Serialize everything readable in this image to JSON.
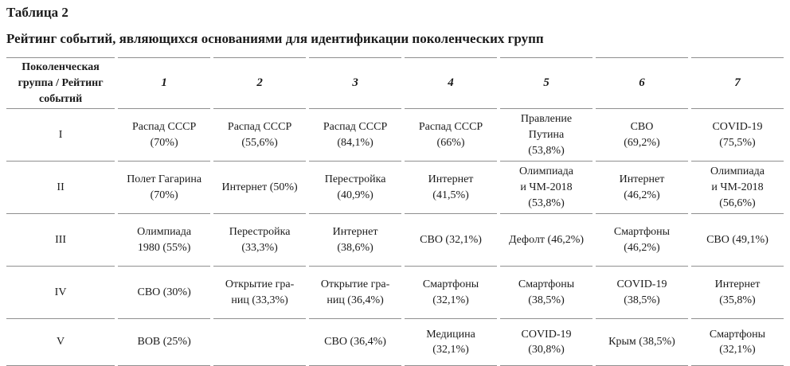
{
  "page": {
    "label": "Таблица 2",
    "title": "Рейтинг событий, являющихся основаниями для идентификации поколенческих групп",
    "background_color": "#ffffff",
    "text_color": "#1b1b1b",
    "rule_color": "#8f8f8f"
  },
  "table": {
    "header": {
      "group_col": "Поколенческая\nгруппа / Рейтинг\nсобытий",
      "rank_cols": [
        "1",
        "2",
        "3",
        "4",
        "5",
        "6",
        "7"
      ]
    },
    "rows": [
      {
        "rank": "I",
        "cells": [
          "Распад СССР\n(70%)",
          "Распад СССР\n(55,6%)",
          "Распад СССР\n(84,1%)",
          "Распад СССР\n(66%)",
          "Правление\nПутина\n(53,8%)",
          "СВО\n(69,2%)",
          "COVID-19\n(75,5%)"
        ]
      },
      {
        "rank": "II",
        "cells": [
          "Полет Гагарина\n(70%)",
          "Интернет (50%)",
          "Перестройка\n(40,9%)",
          "Интернет\n(41,5%)",
          "Олимпиада\nи ЧМ-2018\n(53,8%)",
          "Интернет\n(46,2%)",
          "Олимпиада\nи ЧМ-2018\n(56,6%)"
        ]
      },
      {
        "rank": "III",
        "cells": [
          "Олимпиада\n1980 (55%)",
          "Перестройка\n(33,3%)",
          "Интернет\n(38,6%)",
          "СВО (32,1%)",
          "Дефолт (46,2%)",
          "Смартфоны\n(46,2%)",
          "СВО (49,1%)"
        ]
      },
      {
        "rank": "IV",
        "cells": [
          "СВО (30%)",
          "Открытие гра-\nниц (33,3%)",
          "Открытие гра-\nниц (36,4%)",
          "Смартфоны\n(32,1%)",
          "Смартфоны\n(38,5%)",
          "COVID-19\n(38,5%)",
          "Интернет\n(35,8%)"
        ]
      },
      {
        "rank": "V",
        "cells": [
          "ВОВ (25%)",
          "",
          "СВО (36,4%)",
          "Медицина\n(32,1%)",
          "COVID-19\n(30,8%)",
          "Крым (38,5%)",
          "Смартфоны\n(32,1%)"
        ]
      }
    ]
  }
}
